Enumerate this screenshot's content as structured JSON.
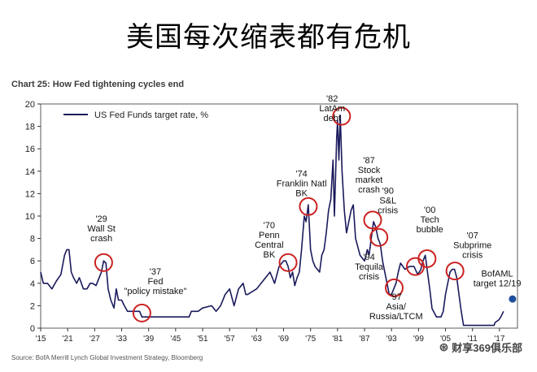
{
  "page": {
    "headline": "美国每次缩表都有危机",
    "source": "Source: BofA Merrill Lynch Global Investment Strategy, Bloomberg",
    "watermark": "财享369俱乐部",
    "watermark_icon": "wechat-icon"
  },
  "chart_data": {
    "type": "line",
    "title": "Chart 25: How Fed tightening cycles end",
    "xlabel": "",
    "ylabel": "",
    "ylim": [
      0,
      20
    ],
    "xlim": [
      1915,
      2021
    ],
    "grid": false,
    "legend_placement": "top-left",
    "x_tick_labels": [
      "'15",
      "'21",
      "'27",
      "'33",
      "'39",
      "'45",
      "'51",
      "'57",
      "'63",
      "'69",
      "'75",
      "'81",
      "'87",
      "'93",
      "'99",
      "'05",
      "'11",
      "'17"
    ],
    "x_ticks": [
      1915,
      1921,
      1927,
      1933,
      1939,
      1945,
      1951,
      1957,
      1963,
      1969,
      1975,
      1981,
      1987,
      1993,
      1999,
      2005,
      2011,
      2017
    ],
    "y_ticks": [
      0,
      2,
      4,
      6,
      8,
      10,
      12,
      14,
      16,
      18,
      20
    ],
    "colors": {
      "series": "#1a1a5c",
      "circle": "#cc2222",
      "target": "#1f4e9c",
      "axis": "#333333"
    },
    "series": [
      {
        "name": "US Fed Funds target rate, %",
        "points": [
          [
            1915,
            5.0
          ],
          [
            1915.6,
            4.0
          ],
          [
            1916.5,
            4.0
          ],
          [
            1917.5,
            3.5
          ],
          [
            1918.5,
            4.2
          ],
          [
            1919.5,
            4.8
          ],
          [
            1920.3,
            6.5
          ],
          [
            1920.8,
            7.0
          ],
          [
            1921.3,
            7.0
          ],
          [
            1921.8,
            5.0
          ],
          [
            1922.3,
            4.5
          ],
          [
            1923.0,
            4.0
          ],
          [
            1923.6,
            4.5
          ],
          [
            1924.5,
            3.5
          ],
          [
            1925.3,
            3.5
          ],
          [
            1926.0,
            4.0
          ],
          [
            1926.5,
            4.0
          ],
          [
            1927.3,
            3.8
          ],
          [
            1928.0,
            4.5
          ],
          [
            1928.5,
            5.0
          ],
          [
            1929.0,
            6.0
          ],
          [
            1929.5,
            5.8
          ],
          [
            1930.0,
            3.5
          ],
          [
            1930.6,
            2.5
          ],
          [
            1931.3,
            1.8
          ],
          [
            1931.8,
            3.5
          ],
          [
            1932.3,
            2.5
          ],
          [
            1933.0,
            2.5
          ],
          [
            1933.6,
            2.0
          ],
          [
            1934.3,
            1.5
          ],
          [
            1935.0,
            1.5
          ],
          [
            1936.0,
            1.5
          ],
          [
            1937.0,
            1.5
          ],
          [
            1937.5,
            1.0
          ],
          [
            1938.5,
            1.0
          ],
          [
            1939.5,
            1.0
          ],
          [
            1940.5,
            1.0
          ],
          [
            1941.5,
            1.0
          ],
          [
            1942.0,
            1.0
          ],
          [
            1945.0,
            1.0
          ],
          [
            1946.0,
            1.0
          ],
          [
            1948.0,
            1.0
          ],
          [
            1948.5,
            1.5
          ],
          [
            1950.0,
            1.5
          ],
          [
            1951.0,
            1.8
          ],
          [
            1953.0,
            2.0
          ],
          [
            1954.0,
            1.5
          ],
          [
            1955.0,
            2.0
          ],
          [
            1956.0,
            3.0
          ],
          [
            1957.0,
            3.5
          ],
          [
            1958.0,
            2.0
          ],
          [
            1959.0,
            3.5
          ],
          [
            1960.0,
            4.0
          ],
          [
            1960.6,
            3.0
          ],
          [
            1961.0,
            3.0
          ],
          [
            1963.0,
            3.5
          ],
          [
            1964.0,
            4.0
          ],
          [
            1965.0,
            4.5
          ],
          [
            1966.0,
            5.0
          ],
          [
            1967.0,
            4.0
          ],
          [
            1968.0,
            5.5
          ],
          [
            1969.0,
            6.0
          ],
          [
            1969.5,
            6.0
          ],
          [
            1970.0,
            5.5
          ],
          [
            1970.5,
            4.5
          ],
          [
            1971.0,
            5.0
          ],
          [
            1971.5,
            3.8
          ],
          [
            1972.0,
            4.5
          ],
          [
            1972.5,
            5.0
          ],
          [
            1973.0,
            7.0
          ],
          [
            1973.6,
            10.0
          ],
          [
            1974.0,
            9.5
          ],
          [
            1974.5,
            11.0
          ],
          [
            1975.0,
            7.0
          ],
          [
            1975.5,
            6.0
          ],
          [
            1976.0,
            5.5
          ],
          [
            1977.0,
            5.0
          ],
          [
            1977.5,
            6.5
          ],
          [
            1978.0,
            7.0
          ],
          [
            1978.5,
            8.5
          ],
          [
            1979.0,
            10.5
          ],
          [
            1979.5,
            11.5
          ],
          [
            1980.0,
            15.0
          ],
          [
            1980.3,
            10.0
          ],
          [
            1980.8,
            17.0
          ],
          [
            1981.0,
            18.5
          ],
          [
            1981.3,
            15.0
          ],
          [
            1981.6,
            19.0
          ],
          [
            1982.0,
            14.0
          ],
          [
            1982.5,
            10.5
          ],
          [
            1983.0,
            8.5
          ],
          [
            1984.0,
            10.5
          ],
          [
            1984.5,
            11.0
          ],
          [
            1985.0,
            8.0
          ],
          [
            1986.0,
            6.5
          ],
          [
            1987.0,
            6.0
          ],
          [
            1987.6,
            7.0
          ],
          [
            1988.0,
            6.5
          ],
          [
            1988.5,
            8.0
          ],
          [
            1989.0,
            9.5
          ],
          [
            1989.5,
            9.0
          ],
          [
            1990.0,
            8.0
          ],
          [
            1990.5,
            7.5
          ],
          [
            1991.0,
            6.0
          ],
          [
            1991.5,
            5.0
          ],
          [
            1992.0,
            4.0
          ],
          [
            1992.5,
            3.0
          ],
          [
            1993.0,
            3.0
          ],
          [
            1994.0,
            4.0
          ],
          [
            1994.5,
            5.0
          ],
          [
            1995.0,
            5.8
          ],
          [
            1996.0,
            5.25
          ],
          [
            1997.0,
            5.5
          ],
          [
            1998.0,
            5.5
          ],
          [
            1998.8,
            4.8
          ],
          [
            1999.5,
            5.2
          ],
          [
            2000.0,
            6.0
          ],
          [
            2000.5,
            6.5
          ],
          [
            2001.0,
            5.0
          ],
          [
            2001.5,
            3.5
          ],
          [
            2002.0,
            1.75
          ],
          [
            2003.0,
            1.0
          ],
          [
            2004.0,
            1.0
          ],
          [
            2004.5,
            1.5
          ],
          [
            2005.0,
            3.0
          ],
          [
            2006.0,
            5.0
          ],
          [
            2006.5,
            5.25
          ],
          [
            2007.0,
            5.25
          ],
          [
            2007.5,
            4.5
          ],
          [
            2008.0,
            3.0
          ],
          [
            2008.5,
            1.5
          ],
          [
            2009.0,
            0.25
          ],
          [
            2015.8,
            0.25
          ],
          [
            2016.0,
            0.5
          ],
          [
            2016.9,
            0.75
          ],
          [
            2017.3,
            1.0
          ],
          [
            2017.6,
            1.25
          ],
          [
            2017.9,
            1.5
          ]
        ]
      }
    ],
    "target_point": {
      "x": 2019.9,
      "y": 2.6
    },
    "annotations": [
      {
        "label": [
          "'29",
          "Wall St",
          "crash"
        ],
        "cx": 1929.0,
        "cy": 5.85,
        "tx": 1928.5,
        "ty": 9.5
      },
      {
        "label": [
          "'37",
          "Fed",
          "\"policy mistake\""
        ],
        "cx": 1937.5,
        "cy": 1.35,
        "tx": 1940.5,
        "ty": 4.8
      },
      {
        "label": [
          "'70",
          "Penn",
          "Central",
          "BK"
        ],
        "cx": 1970.0,
        "cy": 5.85,
        "tx": 1965.8,
        "ty": 8.9
      },
      {
        "label": [
          "'74",
          "Franklin Natl",
          "BK"
        ],
        "cx": 1974.5,
        "cy": 10.85,
        "tx": 1973.0,
        "ty": 13.5
      },
      {
        "label": [
          "'82",
          "LatAm",
          "debt"
        ],
        "cx": 1981.9,
        "cy": 18.9,
        "tx": 1979.8,
        "ty": 20.2
      },
      {
        "label": [
          "'87",
          "Stock",
          "market",
          "crash"
        ],
        "cx": 1988.8,
        "cy": 9.65,
        "tx": 1988.0,
        "ty": 14.7
      },
      {
        "label": [
          "'90",
          "S&L",
          "crisis"
        ],
        "cx": 1990.2,
        "cy": 8.1,
        "tx": 1992.2,
        "ty": 12.0
      },
      {
        "label": [
          "'94",
          "Tequila",
          "crisis"
        ],
        "cx": 1993.6,
        "cy": 3.6,
        "tx": 1988.0,
        "ty": 6.1
      },
      {
        "label": [
          "'97",
          "Asia/",
          "Russia/LTCM"
        ],
        "cx": 1998.3,
        "cy": 5.5,
        "tx": 1994.0,
        "ty": 2.55
      },
      {
        "label": [
          "'00",
          "Tech",
          "bubble"
        ],
        "cx": 2000.9,
        "cy": 6.2,
        "tx": 2001.5,
        "ty": 10.3
      },
      {
        "label": [
          "'07",
          "Subprime",
          "crisis"
        ],
        "cx": 2007.1,
        "cy": 5.1,
        "tx": 2011.0,
        "ty": 8.0
      },
      {
        "label": [
          "BofAML",
          "target 12/19"
        ],
        "cx": null,
        "cy": null,
        "tx": 2016.5,
        "ty": 4.6
      }
    ]
  }
}
